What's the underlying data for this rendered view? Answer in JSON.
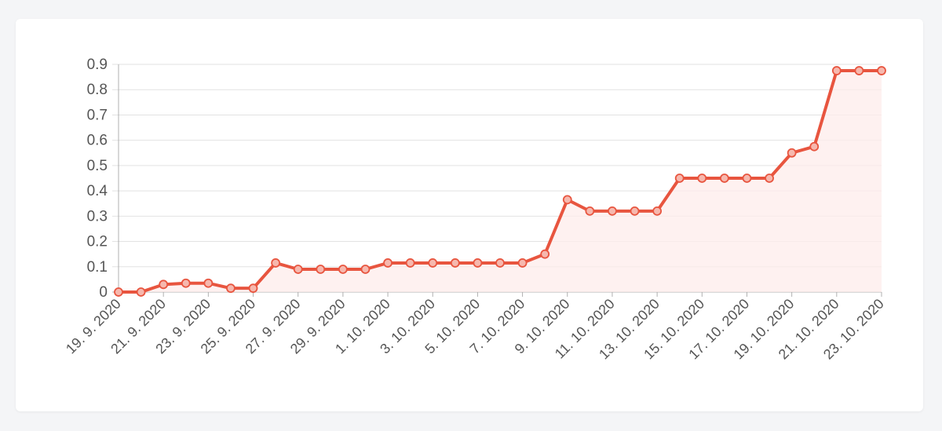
{
  "colors": {
    "line": "#e8553f",
    "area": "#fdeceb",
    "point_fill": "#f6b8ae",
    "grid": "#e2e2e2",
    "axis": "#b0b0b0"
  },
  "chart_data": {
    "type": "area",
    "title": "",
    "xlabel": "",
    "ylabel": "",
    "ylim": [
      0,
      0.9
    ],
    "y_ticks": [
      "0",
      "0.1",
      "0.2",
      "0.3",
      "0.4",
      "0.5",
      "0.6",
      "0.7",
      "0.8",
      "0.9"
    ],
    "grid": true,
    "x": [
      "19. 9. 2020",
      "20. 9. 2020",
      "21. 9. 2020",
      "22. 9. 2020",
      "23. 9. 2020",
      "24. 9. 2020",
      "25. 9. 2020",
      "26. 9. 2020",
      "27. 9. 2020",
      "28. 9. 2020",
      "29. 9. 2020",
      "30. 9. 2020",
      "1. 10. 2020",
      "2. 10. 2020",
      "3. 10. 2020",
      "4. 10. 2020",
      "5. 10. 2020",
      "6. 10. 2020",
      "7. 10. 2020",
      "8. 10. 2020",
      "9. 10. 2020",
      "10. 10. 2020",
      "11. 10. 2020",
      "12. 10. 2020",
      "13. 10. 2020",
      "14. 10. 2020",
      "15. 10. 2020",
      "16. 10. 2020",
      "17. 10. 2020",
      "18. 10. 2020",
      "19. 10. 2020",
      "20. 10. 2020",
      "21. 10. 2020",
      "22. 10. 2020",
      "23. 10. 2020"
    ],
    "x_tick_labels": [
      "19. 9. 2020",
      "21. 9. 2020",
      "23. 9. 2020",
      "25. 9. 2020",
      "27. 9. 2020",
      "29. 9. 2020",
      "1. 10. 2020",
      "3. 10. 2020",
      "5. 10. 2020",
      "7. 10. 2020",
      "9. 10. 2020",
      "11. 10. 2020",
      "13. 10. 2020",
      "15. 10. 2020",
      "17. 10. 2020",
      "19. 10. 2020",
      "21. 10. 2020",
      "23. 10. 2020"
    ],
    "series": [
      {
        "values": [
          0,
          0,
          0.03,
          0.035,
          0.035,
          0.015,
          0.015,
          0.115,
          0.09,
          0.09,
          0.09,
          0.09,
          0.115,
          0.115,
          0.115,
          0.115,
          0.115,
          0.115,
          0.115,
          0.15,
          0.365,
          0.32,
          0.32,
          0.32,
          0.32,
          0.45,
          0.45,
          0.45,
          0.45,
          0.45,
          0.55,
          0.575,
          0.875,
          0.875,
          0.875
        ]
      }
    ]
  }
}
